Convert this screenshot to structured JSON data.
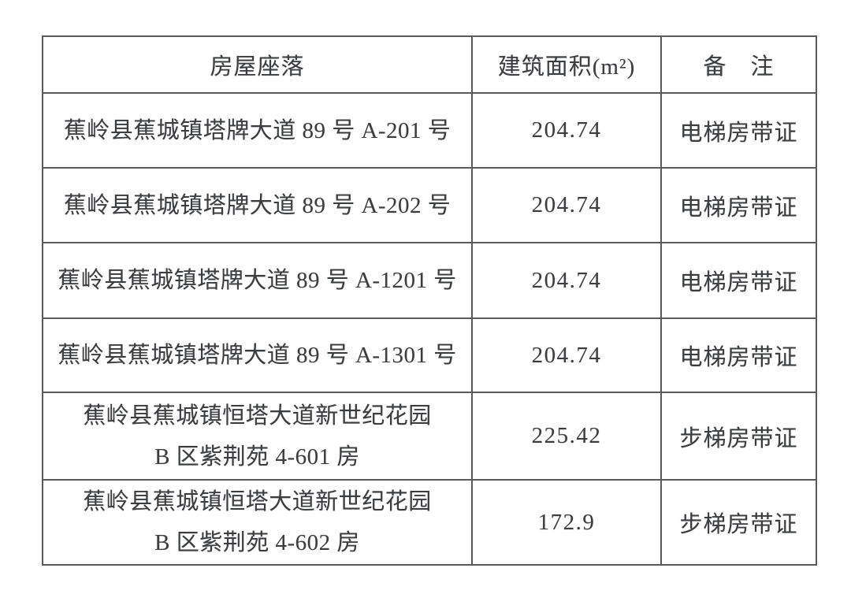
{
  "colors": {
    "background": "#ffffff",
    "border": "#595a5e",
    "text": "#3c3d3f"
  },
  "table": {
    "headers": [
      "房屋座落",
      "建筑面积(m²)",
      "备　注"
    ],
    "rows": [
      {
        "location": "蕉岭县蕉城镇塔牌大道 89 号 A-201 号",
        "area": "204.74",
        "note": "电梯房带证"
      },
      {
        "location": "蕉岭县蕉城镇塔牌大道 89 号 A-202 号",
        "area": "204.74",
        "note": "电梯房带证"
      },
      {
        "location": "蕉岭县蕉城镇塔牌大道 89 号 A-1201 号",
        "area": "204.74",
        "note": "电梯房带证"
      },
      {
        "location": "蕉岭县蕉城镇塔牌大道 89 号 A-1301 号",
        "area": "204.74",
        "note": "电梯房带证"
      },
      {
        "location": "蕉岭县蕉城镇恒塔大道新世纪花园\nB 区紫荆苑 4-601 房",
        "area": "225.42",
        "note": "步梯房带证"
      },
      {
        "location": "蕉岭县蕉城镇恒塔大道新世纪花园\nB 区紫荆苑 4-602 房",
        "area": "172.9",
        "note": "步梯房带证"
      }
    ]
  }
}
